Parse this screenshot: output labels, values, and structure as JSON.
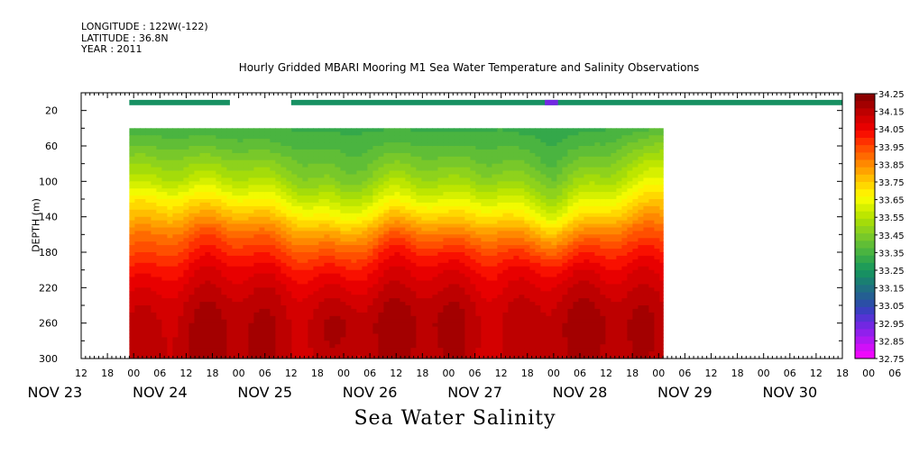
{
  "header": {
    "longitude": "LONGITUDE : 122W(-122)",
    "latitude": "LATITUDE : 36.8N",
    "year": "YEAR : 2011"
  },
  "footer_label": "Sea Water Salinity",
  "chart_data": {
    "type": "heatmap",
    "title": "Hourly Gridded MBARI Mooring M1 Sea Water Temperature and Salinity Observations",
    "ylabel": "DEPTH (m)",
    "xlabel": "",
    "ylim": [
      300,
      0
    ],
    "y_ticks": [
      20,
      60,
      100,
      140,
      180,
      220,
      260,
      300
    ],
    "x_hour_ticks": [
      "12",
      "18",
      "00",
      "06",
      "12",
      "18",
      "00",
      "06",
      "12",
      "18",
      "00",
      "06",
      "12",
      "18",
      "00",
      "06",
      "12",
      "18",
      "00",
      "06",
      "12",
      "18",
      "00",
      "06",
      "12",
      "18",
      "00",
      "06",
      "12",
      "18",
      "00",
      "06"
    ],
    "x_date_ticks": [
      "NOV 23",
      "NOV 24",
      "NOV 25",
      "NOV 26",
      "NOV 27",
      "NOV 28",
      "NOV 29",
      "NOV 30"
    ],
    "x_range_hours": [
      "2011-11-23 06:00",
      "2011-11-30 12:00"
    ],
    "data_time_range": [
      "2011-11-23 17:00",
      "2011-11-28 19:00"
    ],
    "depths": [
      10,
      40,
      60,
      80,
      100,
      120,
      140,
      160,
      180,
      200,
      220,
      240,
      260,
      280,
      300
    ],
    "profile_times": [
      "2011-11-23 17:00",
      "2011-11-24 12:00",
      "2011-11-25 06:00",
      "2011-11-25 18:00",
      "2011-11-26 06:00",
      "2011-11-26 18:00",
      "2011-11-27 06:00",
      "2011-11-27 18:00",
      "2011-11-28 06:00",
      "2011-11-28 19:00"
    ],
    "salinity_profiles": [
      [
        33.25,
        33.35,
        33.42,
        33.5,
        33.58,
        33.7,
        33.78,
        33.88,
        33.95,
        34.02,
        34.08,
        34.12,
        34.14,
        34.15,
        34.15
      ],
      [
        33.25,
        33.34,
        33.4,
        33.48,
        33.56,
        33.68,
        33.8,
        33.92,
        34.0,
        34.06,
        34.1,
        34.14,
        34.16,
        34.16,
        34.16
      ],
      [
        33.25,
        33.33,
        33.38,
        33.45,
        33.52,
        33.62,
        33.74,
        33.86,
        33.96,
        34.04,
        34.1,
        34.13,
        34.15,
        34.15,
        34.15
      ],
      [
        33.25,
        33.32,
        33.36,
        33.4,
        33.45,
        33.55,
        33.65,
        33.8,
        33.92,
        34.02,
        34.09,
        34.14,
        34.18,
        34.17,
        34.15
      ],
      [
        33.25,
        33.33,
        33.38,
        33.44,
        33.52,
        33.62,
        33.76,
        33.9,
        34.0,
        34.06,
        34.1,
        34.14,
        34.16,
        34.16,
        34.15
      ],
      [
        33.25,
        33.32,
        33.37,
        33.43,
        33.5,
        33.6,
        33.72,
        33.86,
        33.98,
        34.06,
        34.11,
        34.15,
        34.17,
        34.16,
        34.15
      ],
      [
        33.25,
        33.33,
        33.38,
        33.44,
        33.52,
        33.63,
        33.75,
        33.88,
        33.99,
        34.06,
        34.1,
        34.13,
        34.15,
        34.15,
        34.15
      ],
      [
        33.25,
        33.3,
        33.34,
        33.38,
        33.44,
        33.52,
        33.62,
        33.78,
        33.92,
        34.04,
        34.1,
        34.14,
        34.16,
        34.16,
        34.15
      ],
      [
        33.25,
        33.33,
        33.38,
        33.44,
        33.52,
        33.62,
        33.74,
        33.88,
        33.98,
        34.05,
        34.1,
        34.14,
        34.17,
        34.16,
        34.15
      ],
      [
        33.25,
        33.38,
        33.48,
        33.58,
        33.66,
        33.76,
        33.86,
        33.95,
        34.02,
        34.08,
        34.12,
        34.15,
        34.16,
        34.16,
        34.15
      ]
    ],
    "surface_gap": [
      "2011-11-24 16:00",
      "2011-11-25 06:00"
    ],
    "surface_low_anomaly": [
      "2011-11-27 16:00",
      "2011-11-27 19:00",
      32.95
    ],
    "colorbar": {
      "levels": [
        34.25,
        34.2,
        34.15,
        34.1,
        34.05,
        34.0,
        33.95,
        33.9,
        33.85,
        33.8,
        33.75,
        33.7,
        33.65,
        33.6,
        33.55,
        33.5,
        33.45,
        33.4,
        33.35,
        33.3,
        33.25,
        33.2,
        33.15,
        33.1,
        33.05,
        33.0,
        32.95,
        32.9,
        32.85,
        32.8,
        32.75
      ],
      "labels": [
        "34.25",
        "34.15",
        "34.05",
        "33.95",
        "33.85",
        "33.75",
        "33.65",
        "33.55",
        "33.45",
        "33.35",
        "33.25",
        "33.15",
        "33.05",
        "32.95",
        "32.85",
        "32.75"
      ],
      "colors": [
        "#8b0000",
        "#a30000",
        "#bd0000",
        "#d40000",
        "#e80000",
        "#f91000",
        "#fe3000",
        "#ff4f00",
        "#ff6a00",
        "#ff8800",
        "#ffa200",
        "#ffbe00",
        "#ffd800",
        "#fff000",
        "#f2fb00",
        "#d6f000",
        "#bde600",
        "#a4dc0a",
        "#8ed21c",
        "#78c82a",
        "#60be36",
        "#4ab440",
        "#34a84a",
        "#1f9c58",
        "#179062",
        "#1a7f72",
        "#1f6f82",
        "#245f92",
        "#2b4fa6",
        "#3a3fc0",
        "#5533d4",
        "#7228e2",
        "#9020ec",
        "#b018f2",
        "#d010f8",
        "#ee08fc"
      ]
    }
  }
}
